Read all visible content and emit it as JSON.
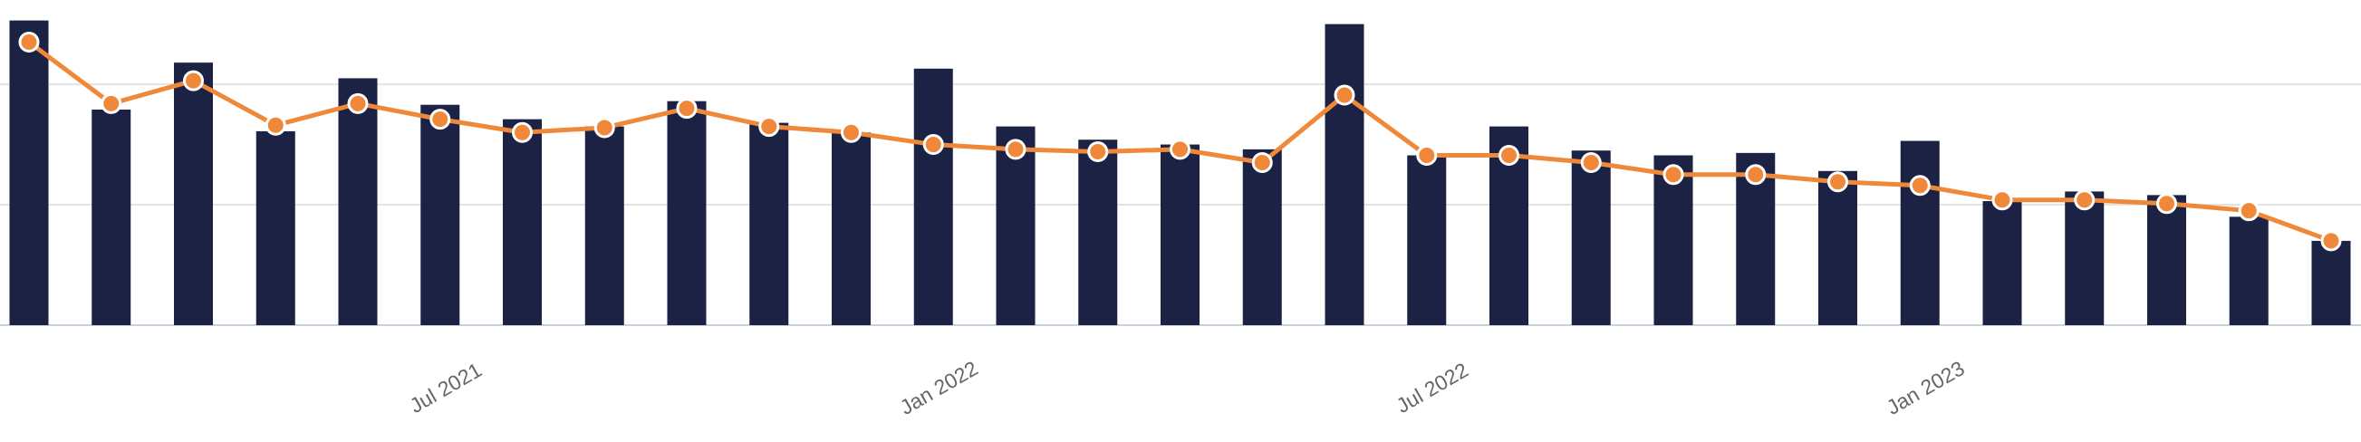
{
  "chart_data": {
    "type": "bar-line",
    "categories": [
      null,
      null,
      null,
      null,
      null,
      "Jul 2021",
      null,
      null,
      null,
      null,
      null,
      "Jan 2022",
      null,
      null,
      null,
      null,
      null,
      "Jul 2022",
      null,
      null,
      null,
      null,
      null,
      "Jan 2023",
      null,
      null,
      null,
      null,
      null
    ],
    "series": [
      {
        "type": "bar",
        "color": "#1c2244",
        "values": [
          2.53,
          1.79,
          2.18,
          1.61,
          2.05,
          1.83,
          1.71,
          1.65,
          1.86,
          1.68,
          1.6,
          2.13,
          1.65,
          1.54,
          1.5,
          1.46,
          2.5,
          1.41,
          1.65,
          1.45,
          1.41,
          1.43,
          1.28,
          1.53,
          1.03,
          1.11,
          1.08,
          0.9,
          0.7
        ]
      },
      {
        "type": "line",
        "color": "#f0883a",
        "values": [
          2.35,
          1.84,
          2.03,
          1.66,
          1.84,
          1.71,
          1.6,
          1.64,
          1.8,
          1.65,
          1.6,
          1.5,
          1.46,
          1.44,
          1.46,
          1.35,
          1.91,
          1.41,
          1.41,
          1.35,
          1.25,
          1.25,
          1.19,
          1.16,
          1.04,
          1.04,
          1.01,
          0.95,
          0.7
        ]
      }
    ],
    "ylim": [
      0,
      2.7
    ],
    "yticks": [
      0,
      1,
      2
    ],
    "grid": true
  }
}
